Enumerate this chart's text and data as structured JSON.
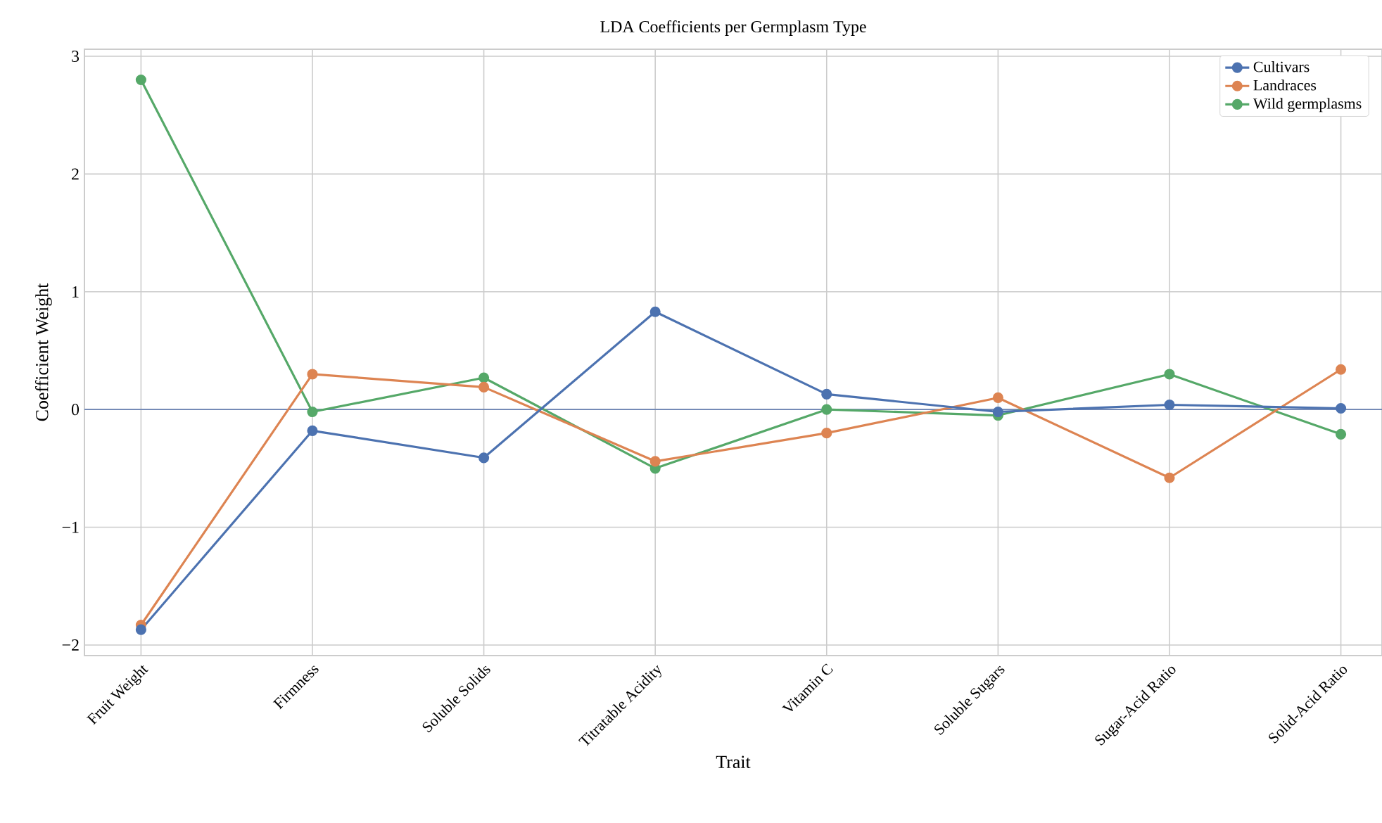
{
  "chart_data": {
    "type": "line",
    "title": "LDA Coefficients per Germplasm Type",
    "xlabel": "Trait",
    "ylabel": "Coefficient Weight",
    "categories": [
      "Fruit Weight",
      "Firmness",
      "Soluble Solids",
      "Titratable Acidity",
      "Vitamin C",
      "Soluble Sugars",
      "Sugar-Acid Ratio",
      "Solid-Acid Ratio"
    ],
    "series": [
      {
        "name": "Cultivars",
        "color": "#4c72b0",
        "values": [
          -1.87,
          -0.18,
          -0.41,
          0.83,
          0.13,
          -0.02,
          0.04,
          0.01
        ]
      },
      {
        "name": "Landraces",
        "color": "#dd8452",
        "values": [
          -1.83,
          0.3,
          0.19,
          -0.44,
          -0.2,
          0.1,
          -0.58,
          0.34
        ]
      },
      {
        "name": "Wild germplasms",
        "color": "#55a868",
        "values": [
          2.8,
          -0.02,
          0.27,
          -0.5,
          0.0,
          -0.05,
          0.3,
          -0.21
        ]
      }
    ],
    "ylim": [
      -2.09,
      3.06
    ],
    "yticks": [
      {
        "value": -2,
        "label": "−2"
      },
      {
        "value": -1,
        "label": "−1"
      },
      0,
      1,
      2,
      3
    ],
    "ref_lines": [
      {
        "axis": "y",
        "value": 0,
        "color": "#6c84b4"
      }
    ],
    "grid": true,
    "legend": "top right",
    "marker": "circle",
    "line_style": "solid"
  }
}
